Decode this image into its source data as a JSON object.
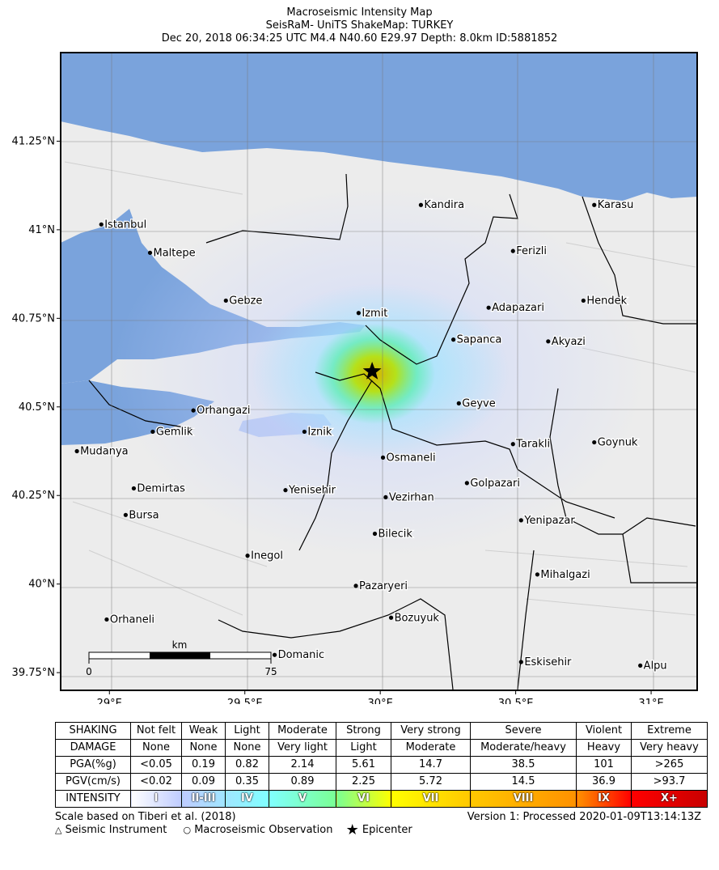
{
  "title": {
    "line1": "Macroseismic Intensity Map",
    "line2": "SeisRaM- UniTS ShakeMap: TURKEY",
    "line3": "Dec 20, 2018 06:34:25 UTC M4.4 N40.60 E29.97 Depth: 8.0km ID:5881852"
  },
  "map": {
    "extent": {
      "lon": [
        28.82,
        31.17
      ],
      "lat": [
        39.7,
        41.5
      ]
    },
    "lat_ticks": [
      {
        "v": 41.25,
        "label": "41.25°N"
      },
      {
        "v": 41.0,
        "label": "41°N"
      },
      {
        "v": 40.75,
        "label": "40.75°N"
      },
      {
        "v": 40.5,
        "label": "40.5°N"
      },
      {
        "v": 40.25,
        "label": "40.25°N"
      },
      {
        "v": 40.0,
        "label": "40°N"
      },
      {
        "v": 39.75,
        "label": "39.75°N"
      }
    ],
    "lon_ticks": [
      {
        "v": 29.0,
        "label": "29°E"
      },
      {
        "v": 29.5,
        "label": "29.5°E"
      },
      {
        "v": 30.0,
        "label": "30°E"
      },
      {
        "v": 30.5,
        "label": "30.5°E"
      },
      {
        "v": 31.0,
        "label": "31°E"
      }
    ],
    "epicenter": {
      "lon": 29.97,
      "lat": 40.6
    },
    "cities": [
      {
        "name": "Istanbul",
        "lon": 28.97,
        "lat": 41.015
      },
      {
        "name": "Maltepe",
        "lon": 29.15,
        "lat": 40.935
      },
      {
        "name": "Kandira",
        "lon": 30.15,
        "lat": 41.07
      },
      {
        "name": "Karasu",
        "lon": 30.79,
        "lat": 41.07
      },
      {
        "name": "Ferizli",
        "lon": 30.49,
        "lat": 40.94
      },
      {
        "name": "Gebze",
        "lon": 29.43,
        "lat": 40.8
      },
      {
        "name": "Izmit",
        "lon": 29.92,
        "lat": 40.765
      },
      {
        "name": "Adapazari",
        "lon": 30.4,
        "lat": 40.78
      },
      {
        "name": "Hendek",
        "lon": 30.75,
        "lat": 40.8
      },
      {
        "name": "Sapanca",
        "lon": 30.27,
        "lat": 40.69
      },
      {
        "name": "Akyazi",
        "lon": 30.62,
        "lat": 40.685
      },
      {
        "name": "Geyve",
        "lon": 30.29,
        "lat": 40.51
      },
      {
        "name": "Orhangazi",
        "lon": 29.31,
        "lat": 40.49
      },
      {
        "name": "Gemlik",
        "lon": 29.16,
        "lat": 40.43
      },
      {
        "name": "Iznik",
        "lon": 29.72,
        "lat": 40.43
      },
      {
        "name": "Tarakli",
        "lon": 30.49,
        "lat": 40.395
      },
      {
        "name": "Goynuk",
        "lon": 30.79,
        "lat": 40.4
      },
      {
        "name": "Mudanya",
        "lon": 28.88,
        "lat": 40.375
      },
      {
        "name": "Osmaneli",
        "lon": 30.01,
        "lat": 40.357
      },
      {
        "name": "Demirtas",
        "lon": 29.09,
        "lat": 40.27
      },
      {
        "name": "Yenisehir",
        "lon": 29.65,
        "lat": 40.265
      },
      {
        "name": "Golpazari",
        "lon": 30.32,
        "lat": 40.285
      },
      {
        "name": "Vezirhan",
        "lon": 30.02,
        "lat": 40.245
      },
      {
        "name": "Bursa",
        "lon": 29.06,
        "lat": 40.195
      },
      {
        "name": "Yenipazar",
        "lon": 30.52,
        "lat": 40.18
      },
      {
        "name": "Bilecik",
        "lon": 29.98,
        "lat": 40.142
      },
      {
        "name": "Inegol",
        "lon": 29.51,
        "lat": 40.08
      },
      {
        "name": "Mihalgazi",
        "lon": 30.58,
        "lat": 40.027
      },
      {
        "name": "Pazaryeri",
        "lon": 29.91,
        "lat": 39.995
      },
      {
        "name": "Orhaneli",
        "lon": 28.99,
        "lat": 39.9
      },
      {
        "name": "Bozuyuk",
        "lon": 30.04,
        "lat": 39.905
      },
      {
        "name": "Domanic",
        "lon": 29.61,
        "lat": 39.8
      },
      {
        "name": "Eskisehir",
        "lon": 30.52,
        "lat": 39.78
      },
      {
        "name": "Alpu",
        "lon": 30.96,
        "lat": 39.77
      }
    ],
    "scalebar": {
      "unit": "km",
      "min": "0",
      "max": "75"
    }
  },
  "legend": {
    "rows": [
      {
        "header": "SHAKING",
        "cells": [
          "Not felt",
          "Weak",
          "Light",
          "Moderate",
          "Strong",
          "Very strong",
          "Severe",
          "Violent",
          "Extreme"
        ]
      },
      {
        "header": "DAMAGE",
        "cells": [
          "None",
          "None",
          "None",
          "Very light",
          "Light",
          "Moderate",
          "Moderate/heavy",
          "Heavy",
          "Very heavy"
        ]
      },
      {
        "header": "PGA(%g)",
        "cells": [
          "<0.05",
          "0.19",
          "0.82",
          "2.14",
          "5.61",
          "14.7",
          "38.5",
          "101",
          ">265"
        ]
      },
      {
        "header": "PGV(cm/s)",
        "cells": [
          "<0.02",
          "0.09",
          "0.35",
          "0.89",
          "2.25",
          "5.72",
          "14.5",
          "36.9",
          ">93.7"
        ]
      }
    ],
    "intensity": {
      "header": "INTENSITY",
      "cells": [
        "I",
        "II-III",
        "IV",
        "V",
        "VI",
        "VII",
        "VIII",
        "IX",
        "X+"
      ],
      "colors": [
        "#ffffff",
        "#bfccff",
        "#a0e6ff",
        "#80ffff",
        "#7aff93",
        "#ffff00",
        "#ffc800",
        "#ff9100",
        "#ff0000",
        "#c80000"
      ]
    }
  },
  "footer": {
    "scale_note": "Scale based on Tiberi et al. (2018)",
    "version": "Version 1: Processed 2020-01-09T13:14:13Z",
    "key_instrument": "Seismic Instrument",
    "key_macro": "Macroseismic Observation",
    "key_epicenter": "Epicenter"
  }
}
